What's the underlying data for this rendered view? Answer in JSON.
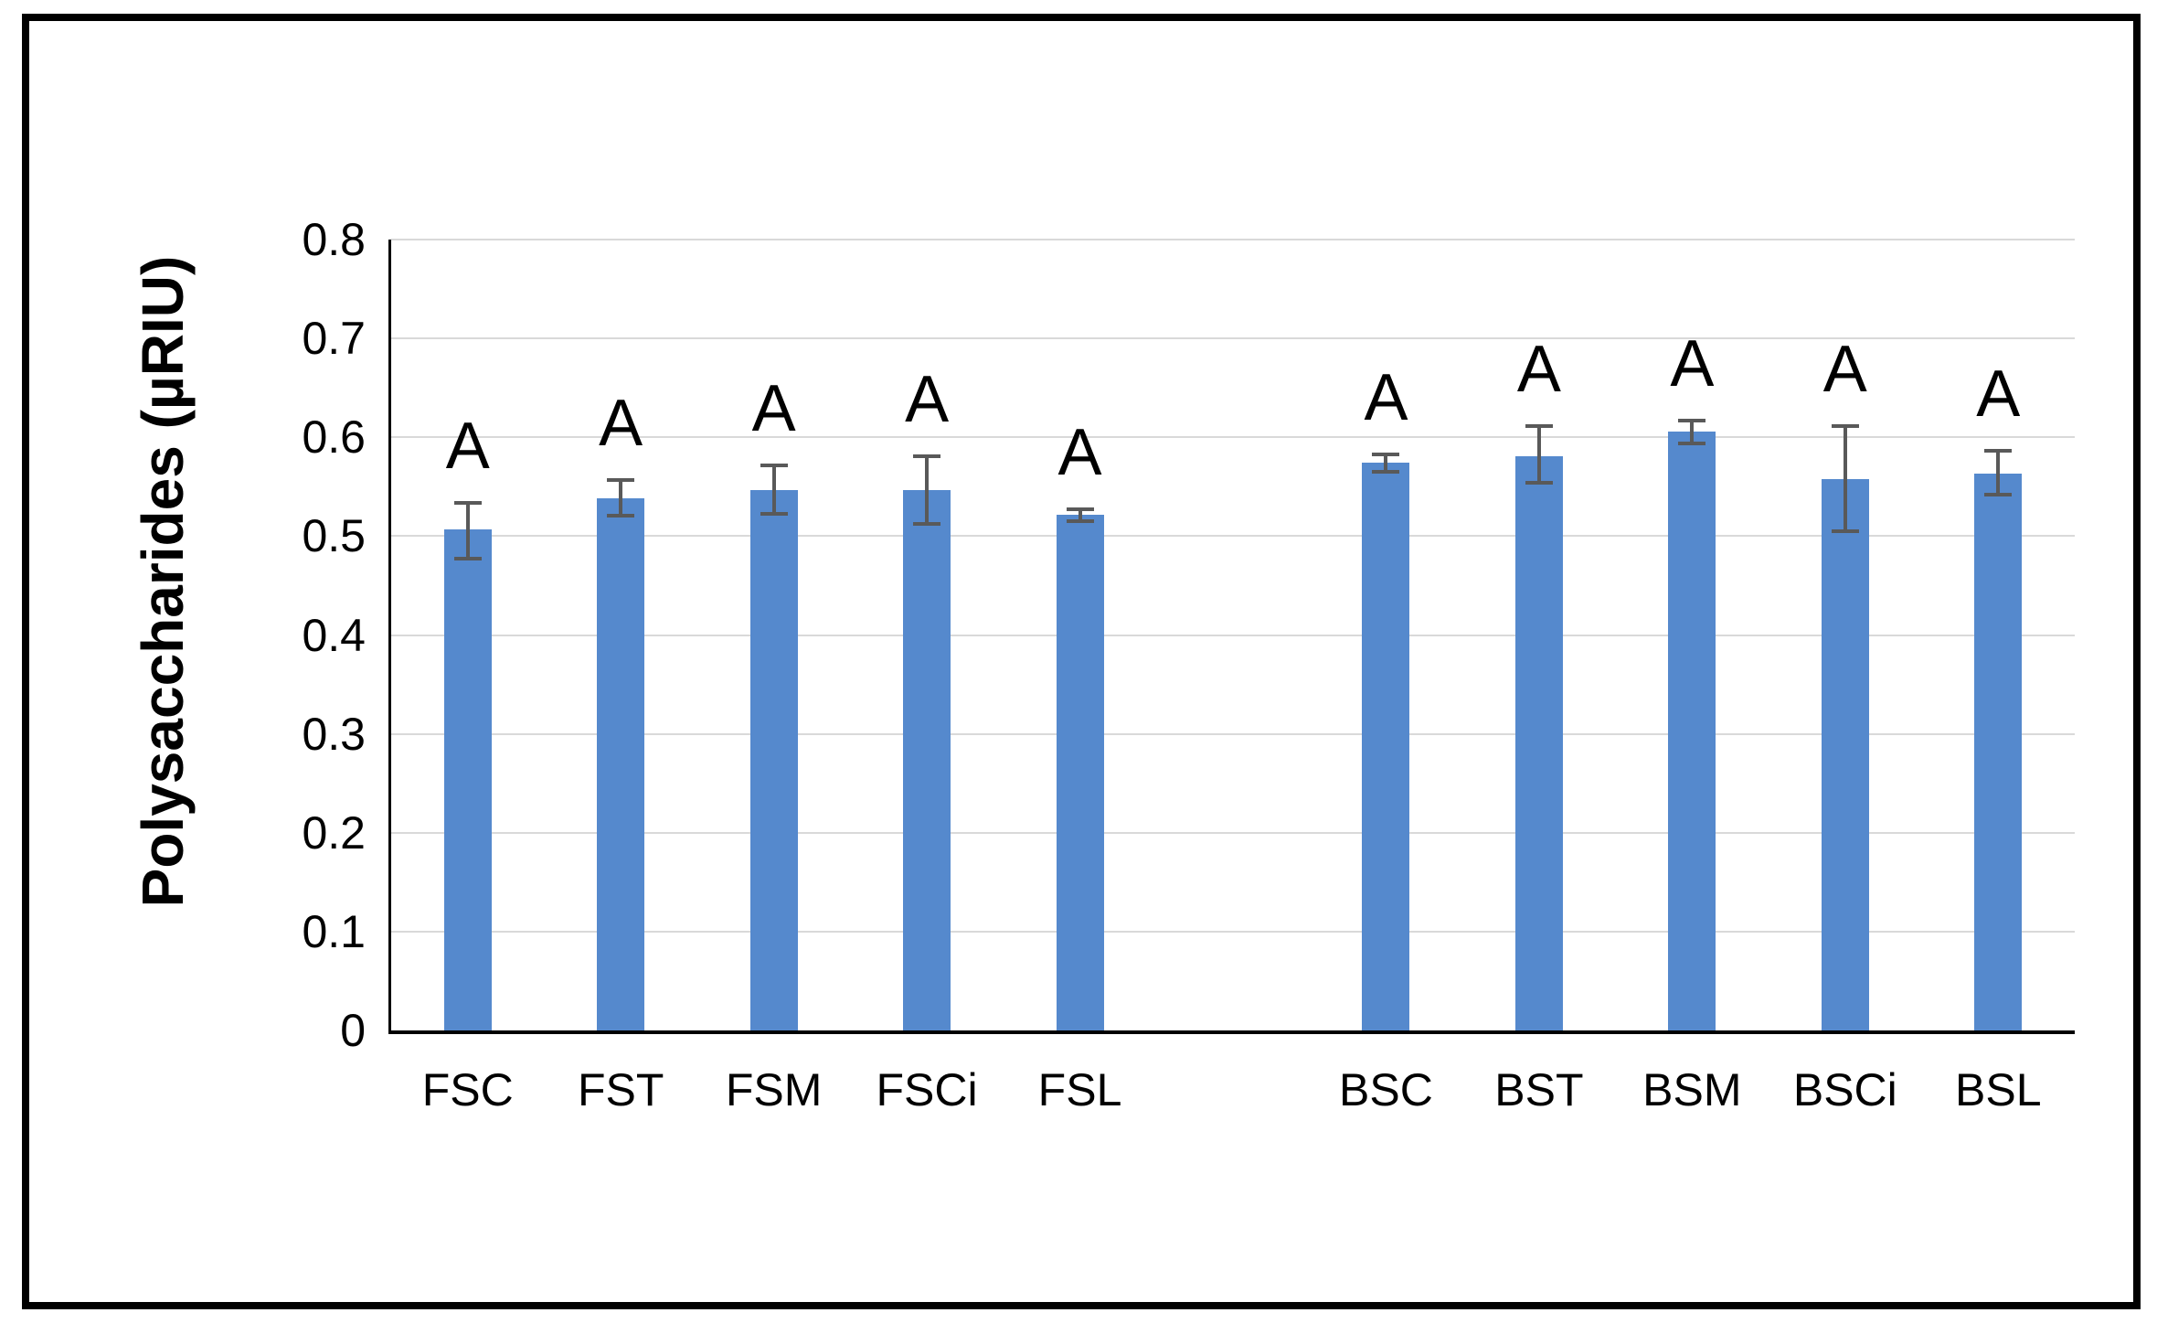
{
  "chart_data": {
    "type": "bar",
    "ylabel": "Polysaccharides (µRIU)",
    "xlabel": "",
    "categories": [
      "FSC",
      "FST",
      "FSM",
      "FSCi",
      "FSL",
      "BSC",
      "BST",
      "BSM",
      "BSCi",
      "BSL"
    ],
    "values": [
      0.507,
      0.538,
      0.547,
      0.547,
      0.522,
      0.574,
      0.581,
      0.606,
      0.558,
      0.563
    ],
    "error_low": [
      0.477,
      0.521,
      0.523,
      0.512,
      0.515,
      0.565,
      0.554,
      0.594,
      0.505,
      0.542
    ],
    "error_high": [
      0.534,
      0.557,
      0.572,
      0.581,
      0.527,
      0.583,
      0.611,
      0.617,
      0.611,
      0.586
    ],
    "sig_letters": [
      "A",
      "A",
      "A",
      "A",
      "A",
      "A",
      "A",
      "A",
      "A",
      "A"
    ],
    "ytick_values": [
      0,
      0.1,
      0.2,
      0.3,
      0.4,
      0.5,
      0.6,
      0.7,
      0.8
    ],
    "ytick_labels": [
      "0",
      "0.1",
      "0.2",
      "0.3",
      "0.4",
      "0.5",
      "0.6",
      "0.7",
      "0.8"
    ],
    "ylim": [
      0,
      0.8
    ],
    "grid": true,
    "legend_position": "none",
    "group_gap_after_index": 4,
    "colors": {
      "bar": "#5589CD",
      "gridline": "#D9D9D9",
      "axis": "#000000",
      "error_bar": "#595959",
      "text": "#000000"
    }
  }
}
